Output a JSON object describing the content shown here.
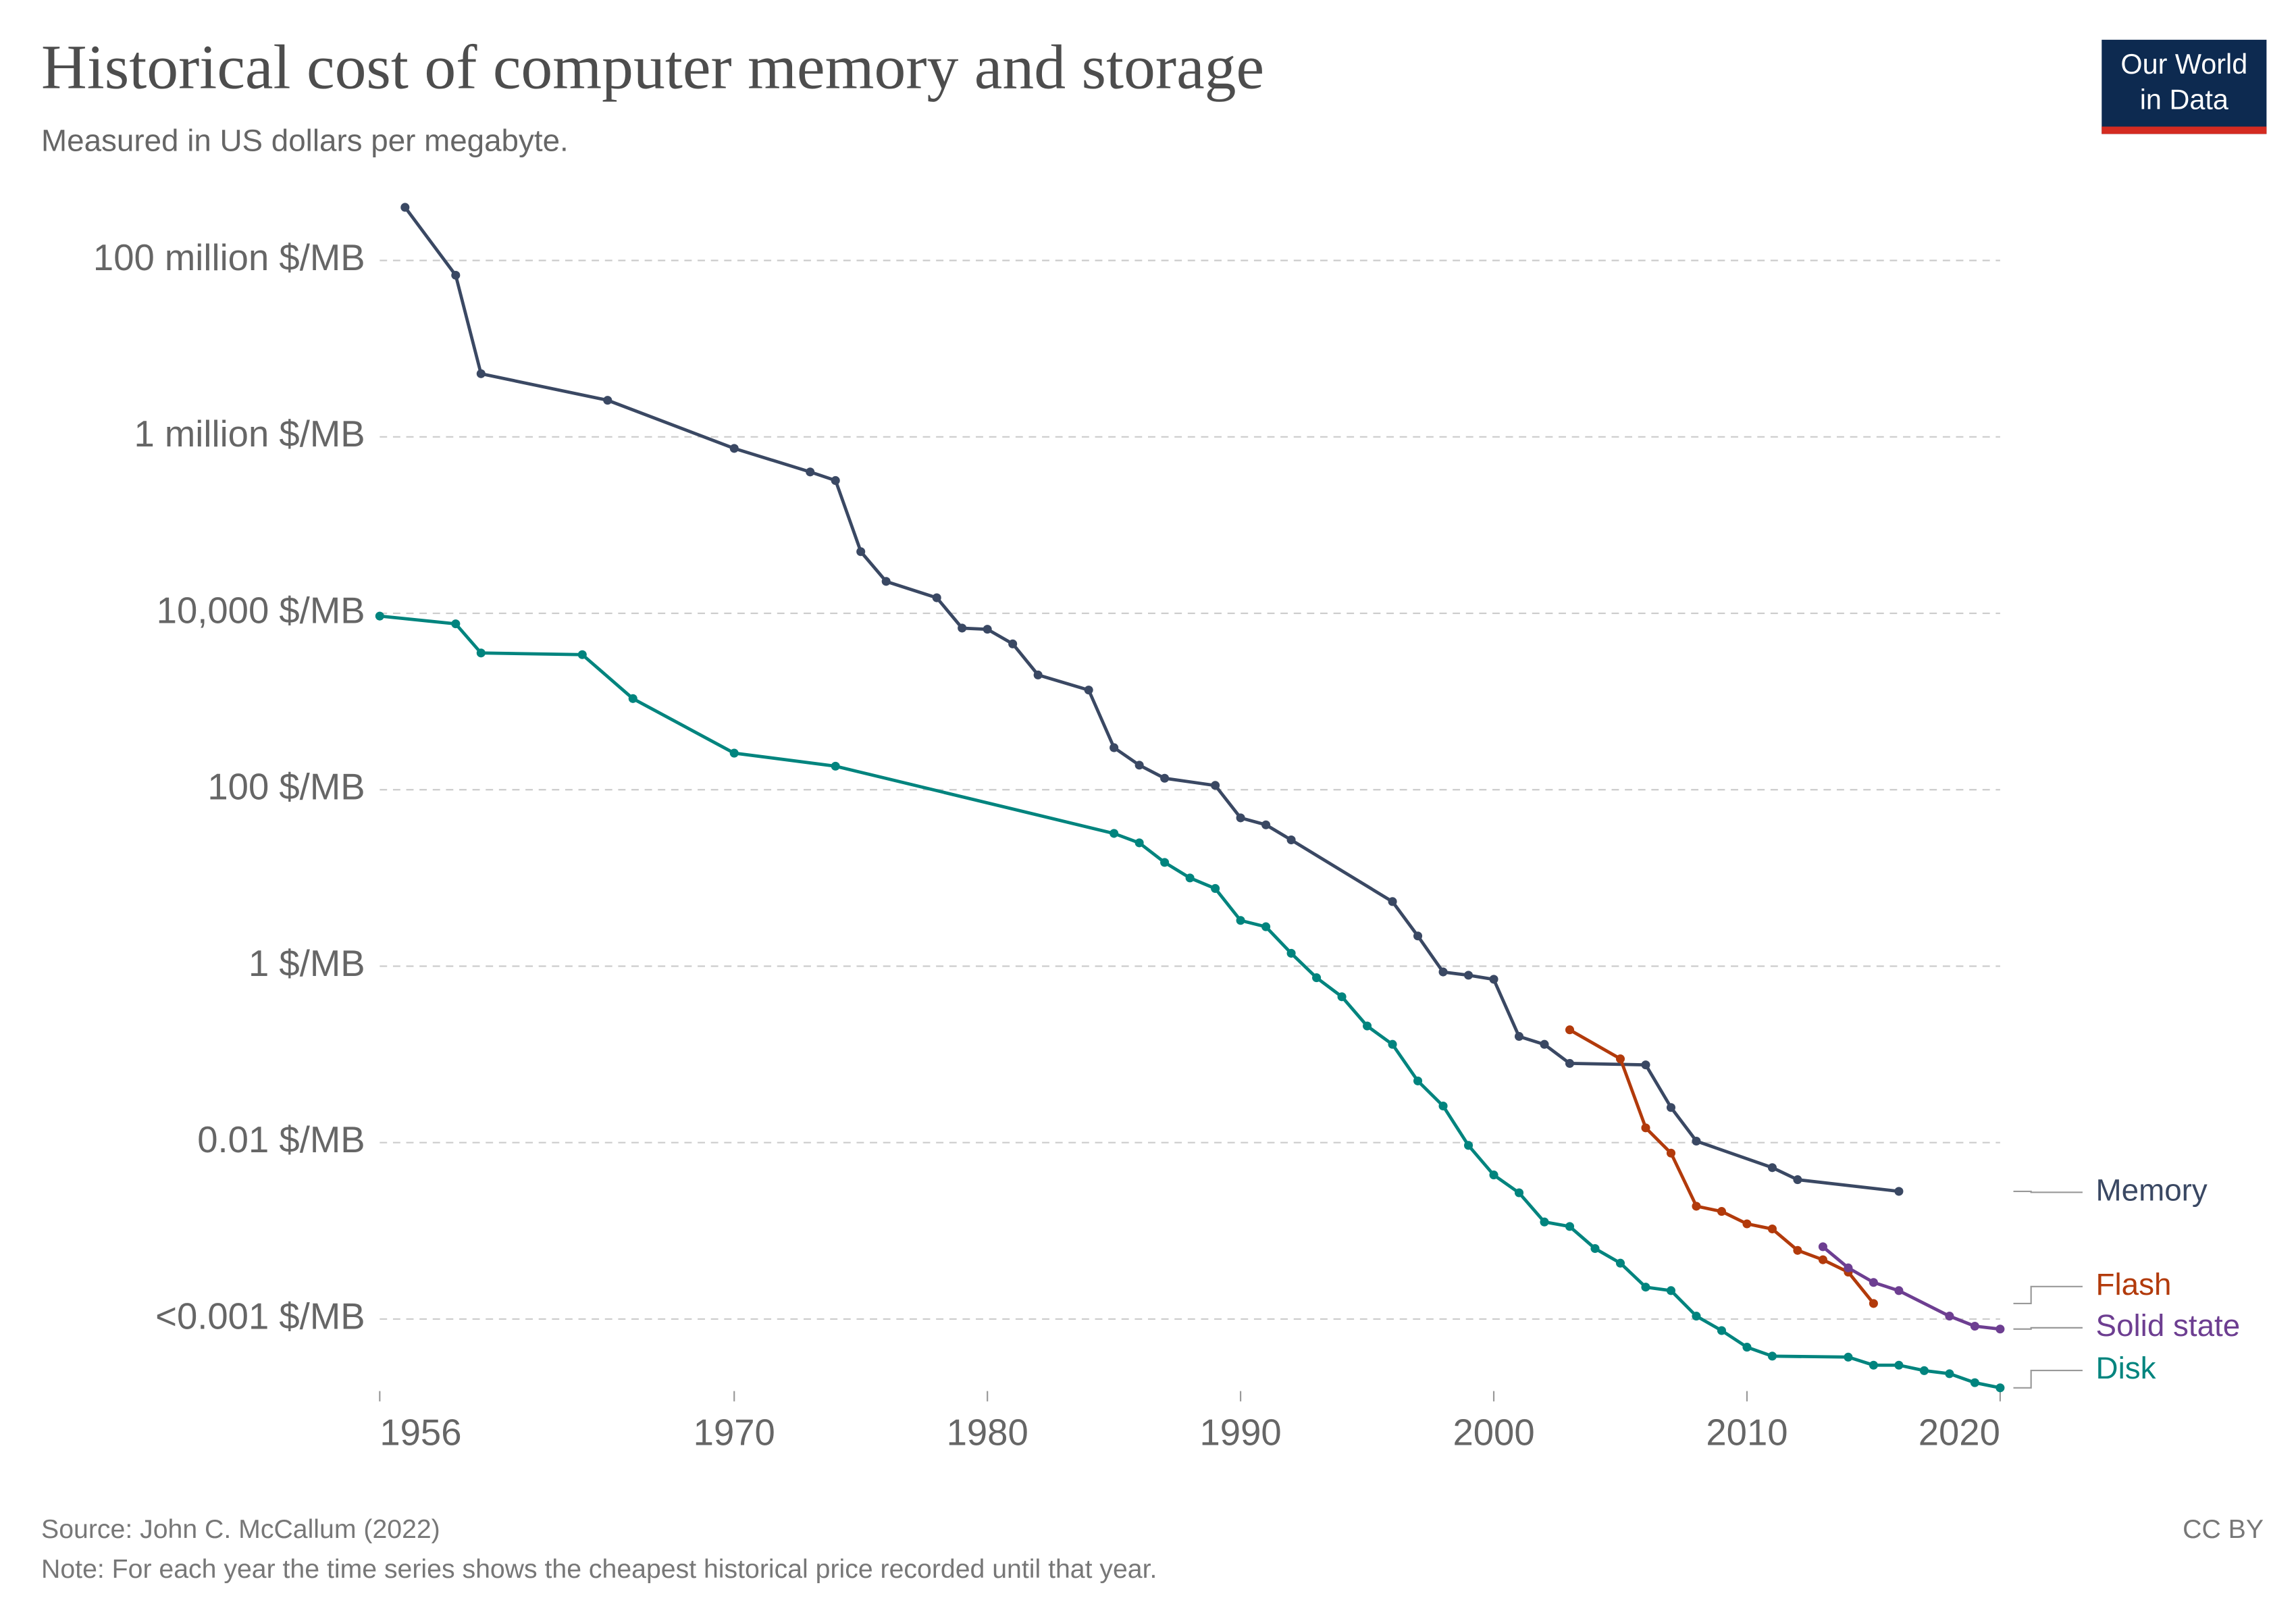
{
  "chart_data": {
    "type": "line",
    "title": "Historical cost of computer memory and storage",
    "subtitle": "Measured in US dollars per megabyte.",
    "source": "Source: John C. McCallum (2022)",
    "note": "Note: For each year the time series shows the cheapest historical price recorded until that year.",
    "license": "CC BY",
    "logo": [
      "Our World",
      "in Data"
    ],
    "log_y": true,
    "grid": true,
    "xlim": [
      1956,
      2020
    ],
    "xticks": [
      1956,
      1970,
      1980,
      1990,
      2000,
      2010,
      2020
    ],
    "ylim": [
      1e-05,
      1000000000
    ],
    "yticks": [
      {
        "value": 100000000,
        "label": "100 million $/MB"
      },
      {
        "value": 1000000,
        "label": "1 million $/MB"
      },
      {
        "value": 10000,
        "label": "10,000 $/MB"
      },
      {
        "value": 100,
        "label": "100 $/MB"
      },
      {
        "value": 1,
        "label": "1 $/MB"
      },
      {
        "value": 0.01,
        "label": "0.01 $/MB"
      },
      {
        "value": 0.0001,
        "label": "<0.001 $/MB"
      }
    ],
    "series": [
      {
        "name": "Memory",
        "color": "#3a4863",
        "x": [
          1957,
          1959,
          1960,
          1965,
          1970,
          1973,
          1974,
          1975,
          1976,
          1978,
          1979,
          1980,
          1981,
          1982,
          1984,
          1985,
          1986,
          1987,
          1989,
          1990,
          1991,
          1992,
          1996,
          1997,
          1998,
          1999,
          2000,
          2001,
          2002,
          2003,
          2006,
          2007,
          2008,
          2011,
          2012,
          2016
        ],
        "values": [
          400000000,
          68000000,
          5200000,
          2600000,
          740000,
          400000,
          320000,
          50000,
          23000,
          15000,
          6800,
          6600,
          4500,
          2000,
          1350,
          300,
          190,
          135,
          112,
          48,
          40,
          27,
          5.4,
          2.2,
          0.86,
          0.79,
          0.71,
          0.16,
          0.13,
          0.079,
          0.076,
          0.025,
          0.0104,
          0.0052,
          0.0038,
          0.0028
        ]
      },
      {
        "name": "Flash",
        "color": "#b23a0b",
        "x": [
          2003,
          2005,
          2006,
          2007,
          2008,
          2009,
          2010,
          2011,
          2012,
          2013,
          2014,
          2015
        ],
        "values": [
          0.19,
          0.089,
          0.0147,
          0.0076,
          0.0019,
          0.00166,
          0.0012,
          0.00105,
          0.0006,
          0.00047,
          0.00034,
          0.00015
        ]
      },
      {
        "name": "Solid state",
        "color": "#6d3e91",
        "x": [
          2013,
          2014,
          2015,
          2016,
          2018,
          2019,
          2020
        ],
        "values": [
          0.00066,
          0.00038,
          0.00026,
          0.00021,
          0.000108,
          8.3e-05,
          7.7e-05
        ]
      },
      {
        "name": "Disk",
        "color": "#00847e",
        "x": [
          1956,
          1959,
          1960,
          1964,
          1966,
          1970,
          1974,
          1985,
          1986,
          1987,
          1988,
          1989,
          1990,
          1991,
          1992,
          1993,
          1994,
          1995,
          1996,
          1997,
          1998,
          1999,
          2000,
          2001,
          2002,
          2003,
          2004,
          2005,
          2006,
          2007,
          2008,
          2009,
          2010,
          2011,
          2014,
          2015,
          2016,
          2017,
          2018,
          2019,
          2020
        ],
        "values": [
          9300,
          7600,
          3550,
          3400,
          1080,
          260,
          185,
          32,
          25,
          15,
          10,
          7.6,
          3.3,
          2.8,
          1.4,
          0.74,
          0.45,
          0.21,
          0.13,
          0.05,
          0.026,
          0.0093,
          0.0043,
          0.0027,
          0.00126,
          0.00112,
          0.00063,
          0.00043,
          0.00023,
          0.00021,
          0.000108,
          7.4e-05,
          4.8e-05,
          3.8e-05,
          3.7e-05,
          3e-05,
          3e-05,
          2.6e-05,
          2.4e-05,
          1.9e-05,
          1.66e-05
        ]
      }
    ]
  }
}
